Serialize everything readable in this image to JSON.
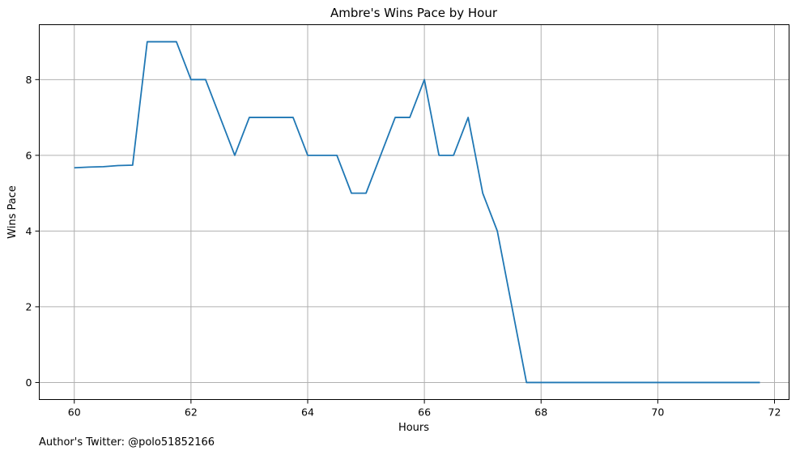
{
  "chart_data": {
    "type": "line",
    "title": "Ambre's Wins Pace by Hour",
    "xlabel": "Hours",
    "ylabel": "Wins Pace",
    "xlim": [
      59.4,
      72.25
    ],
    "ylim": [
      -0.45,
      9.45
    ],
    "xticks": [
      60,
      62,
      64,
      66,
      68,
      70,
      72
    ],
    "yticks": [
      0,
      2,
      4,
      6,
      8
    ],
    "grid": true,
    "series": [
      {
        "color": "#1f77b4",
        "x": [
          60,
          60.25,
          60.5,
          60.75,
          61,
          61.25,
          61.5,
          61.75,
          62,
          62.25,
          62.5,
          62.75,
          63,
          63.25,
          63.5,
          63.75,
          64,
          64.25,
          64.5,
          64.75,
          65,
          65.25,
          65.5,
          65.75,
          66,
          66.25,
          66.5,
          66.75,
          67,
          67.25,
          67.5,
          67.75,
          68,
          68.25,
          68.5,
          68.75,
          69,
          69.25,
          69.5,
          69.75,
          70,
          70.25,
          70.5,
          70.75,
          71,
          71.25,
          71.5,
          71.75
        ],
        "y": [
          5.67,
          5.69,
          5.7,
          5.73,
          5.74,
          9,
          9,
          9,
          8,
          8,
          7,
          6,
          7,
          7,
          7,
          7,
          6,
          6,
          6,
          5,
          5,
          6,
          7,
          7,
          8,
          6,
          6,
          7,
          5,
          4,
          2,
          0,
          0,
          0,
          0,
          0,
          0,
          0,
          0,
          0,
          0,
          0,
          0,
          0,
          0,
          0,
          0,
          0
        ]
      }
    ]
  },
  "footer": {
    "text": "Author's Twitter: @polo51852166"
  }
}
